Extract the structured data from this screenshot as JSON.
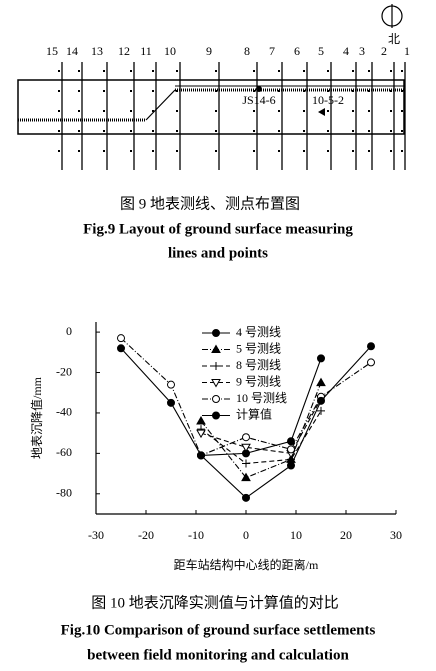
{
  "figure9": {
    "north": "北",
    "line_numbers": [
      "15",
      "14",
      "13",
      "12",
      "11",
      "10",
      "9",
      "8",
      "7",
      "6",
      "5",
      "4",
      "3",
      "2",
      "1"
    ],
    "point_labels": [
      "JS14-6",
      "10-5-2"
    ],
    "caption_cn": "图 9    地表测线、测点布置图",
    "caption_en": [
      "Fig.9    Layout of ground surface measuring",
      "lines and points"
    ]
  },
  "chart_data": {
    "type": "line",
    "x_label": "距车站结构中心线的距离/m",
    "y_label": "地表沉降值/mm",
    "xlim": [
      -30,
      30
    ],
    "xticks": [
      -30,
      -20,
      -10,
      0,
      10,
      20,
      30
    ],
    "ylim": [
      -90,
      5
    ],
    "yticks": [
      0,
      -20,
      -40,
      -60,
      -80
    ],
    "series": [
      {
        "name": "4 号测线",
        "color": "#000000",
        "dash": "solid",
        "marker": "circle-filled",
        "x": [
          -9,
          0,
          9,
          15
        ],
        "values": [
          -61,
          -60,
          -54,
          -13
        ]
      },
      {
        "name": "5 号测线",
        "color": "#000000",
        "dash": "dashdot",
        "marker": "triangle-filled",
        "x": [
          -9,
          0,
          9,
          15
        ],
        "values": [
          -44,
          -72,
          -63,
          -25
        ]
      },
      {
        "name": "8 号测线",
        "color": "#000000",
        "dash": "dashed",
        "marker": "plus",
        "x": [
          -9,
          0,
          9,
          15
        ],
        "values": [
          -48,
          -65,
          -63,
          -39
        ]
      },
      {
        "name": "9 号测线",
        "color": "#000000",
        "dash": "dashed",
        "marker": "triangle-down-open",
        "x": [
          -9,
          0,
          9,
          15
        ],
        "values": [
          -50,
          -57,
          -60,
          -33
        ]
      },
      {
        "name": "10 号测线",
        "color": "#000000",
        "dash": "dashdot",
        "marker": "circle-open",
        "x": [
          -25,
          -15,
          -9,
          0,
          9,
          15,
          25
        ],
        "values": [
          -3,
          -26,
          -61,
          -52,
          -58,
          -32,
          -15
        ]
      },
      {
        "name": "计算值",
        "color": "#000000",
        "dash": "solid",
        "marker": "circle-filled",
        "x": [
          -25,
          -15,
          -9,
          0,
          9,
          15,
          25
        ],
        "values": [
          -8,
          -35,
          -61,
          -82,
          -66,
          -34,
          -7
        ]
      }
    ]
  },
  "figure10": {
    "caption_cn": "图 10    地表沉降实测值与计算值的对比",
    "caption_en": [
      "Fig.10    Comparison of ground surface settlements",
      "between field monitoring and calculation"
    ]
  }
}
